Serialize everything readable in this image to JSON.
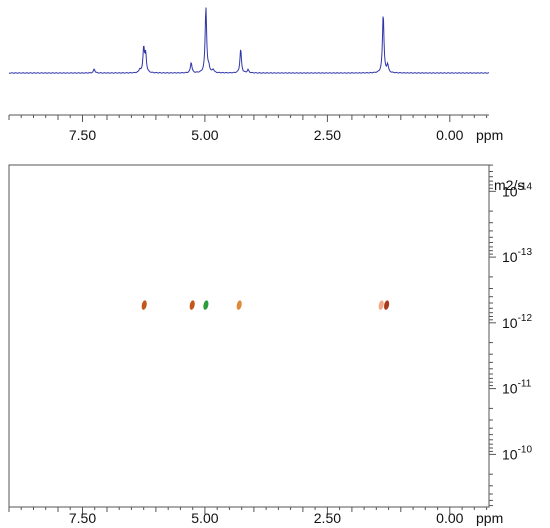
{
  "chart_data": {
    "type": "scatter",
    "subtype": "2D DOSY NMR spectrum with 1D projection",
    "x_axis": {
      "range_ppm": [
        9.0,
        -0.8
      ],
      "reversed": true,
      "ticks": [
        7.5,
        5.0,
        2.5,
        0.0
      ],
      "tick_labels": [
        "7.50",
        "5.00",
        "2.50",
        "0.00"
      ],
      "unit": "ppm"
    },
    "y_axis": {
      "unit": "m2/s",
      "log_scale": true,
      "range_log10": [
        -14.4,
        -9.2
      ],
      "ticks": [
        -14,
        -13,
        -12,
        -11,
        -10
      ],
      "tick_labels": [
        {
          "base": "10",
          "exp": "-14"
        },
        {
          "base": "10",
          "exp": "-13"
        },
        {
          "base": "10",
          "exp": "-12"
        },
        {
          "base": "10",
          "exp": "-11"
        },
        {
          "base": "10",
          "exp": "-10"
        }
      ]
    },
    "projection": {
      "color": "#2f35a8",
      "peaks": [
        {
          "ppm": 7.26,
          "height": 0.06
        },
        {
          "ppm": 6.33,
          "height": 0.05
        },
        {
          "ppm": 6.25,
          "height": 0.38
        },
        {
          "ppm": 6.21,
          "height": 0.28
        },
        {
          "ppm": 5.28,
          "height": 0.16
        },
        {
          "ppm": 4.98,
          "height": 1.0
        },
        {
          "ppm": 4.92,
          "height": 0.08
        },
        {
          "ppm": 4.83,
          "height": 0.05
        },
        {
          "ppm": 4.27,
          "height": 0.36
        },
        {
          "ppm": 4.12,
          "height": 0.05
        },
        {
          "ppm": 1.36,
          "height": 0.9
        },
        {
          "ppm": 1.27,
          "height": 0.12
        }
      ]
    },
    "diffusion_peaks": [
      {
        "ppm": 6.24,
        "log_d": -12.27,
        "color": "#c4561a"
      },
      {
        "ppm": 5.26,
        "log_d": -12.27,
        "color": "#c4561a"
      },
      {
        "ppm": 4.98,
        "log_d": -12.27,
        "color": "#2e9b3c"
      },
      {
        "ppm": 4.3,
        "log_d": -12.27,
        "color": "#e0893a"
      },
      {
        "ppm": 1.4,
        "log_d": -12.27,
        "color": "#f2a98c"
      },
      {
        "ppm": 1.29,
        "log_d": -12.27,
        "color": "#a83a1a"
      }
    ],
    "grid": false,
    "legend": "none"
  }
}
